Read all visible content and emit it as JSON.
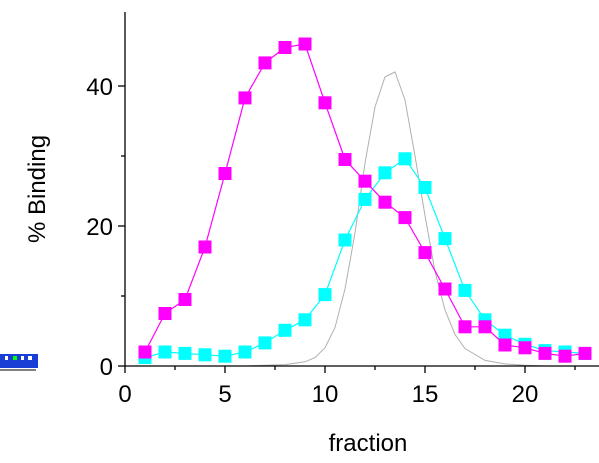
{
  "chart_data": {
    "type": "scatter",
    "xlabel": "fraction",
    "ylabel": "% Binding",
    "xlim": [
      0,
      23.5
    ],
    "ylim": [
      0,
      50
    ],
    "xticks": [
      0,
      5,
      10,
      15,
      20
    ],
    "yticks": [
      0,
      20,
      40
    ],
    "grid": false,
    "series": [
      {
        "style": "markers+line",
        "color": "#ff00ff",
        "x": [
          1,
          2,
          3,
          4,
          5,
          6,
          7,
          8,
          9,
          10,
          11,
          12,
          13,
          14,
          15,
          16,
          17,
          18,
          19,
          20,
          21,
          22,
          23
        ],
        "values": [
          2.0,
          7.5,
          9.5,
          17.0,
          27.5,
          38.3,
          43.3,
          45.5,
          46.0,
          37.6,
          29.5,
          26.4,
          23.4,
          21.2,
          16.2,
          11.0,
          5.6,
          5.6,
          3.0,
          2.6,
          1.8,
          1.4,
          1.8
        ]
      },
      {
        "style": "markers+line",
        "color": "#00ffff",
        "x": [
          1,
          2,
          3,
          4,
          5,
          6,
          7,
          8,
          9,
          10,
          11,
          12,
          13,
          14,
          15,
          16,
          17,
          18,
          19,
          20,
          21,
          22,
          23
        ],
        "values": [
          1.2,
          2.0,
          1.8,
          1.6,
          1.4,
          2.0,
          3.3,
          5.1,
          6.6,
          10.2,
          18.0,
          23.8,
          27.6,
          29.6,
          25.5,
          18.2,
          10.8,
          6.6,
          4.4,
          3.1,
          2.2,
          2.0,
          1.8
        ]
      },
      {
        "style": "line",
        "color": "#b0b0b0",
        "x": [
          1,
          2,
          3,
          4,
          5,
          6,
          7,
          8,
          9,
          9.5,
          10,
          10.5,
          11,
          11.5,
          12,
          12.5,
          13,
          13.5,
          14,
          14.5,
          15,
          15.5,
          16,
          16.5,
          17,
          18,
          19,
          20,
          21,
          22,
          23
        ],
        "values": [
          0.0,
          0.0,
          0.0,
          0.0,
          0.0,
          0.0,
          0.1,
          0.2,
          0.6,
          1.2,
          2.6,
          5.5,
          11.0,
          19.0,
          29.0,
          37.0,
          41.3,
          42.0,
          38.0,
          30.0,
          21.5,
          13.5,
          8.0,
          4.5,
          2.5,
          0.8,
          0.3,
          0.1,
          0.0,
          0.0,
          0.0
        ]
      }
    ]
  }
}
